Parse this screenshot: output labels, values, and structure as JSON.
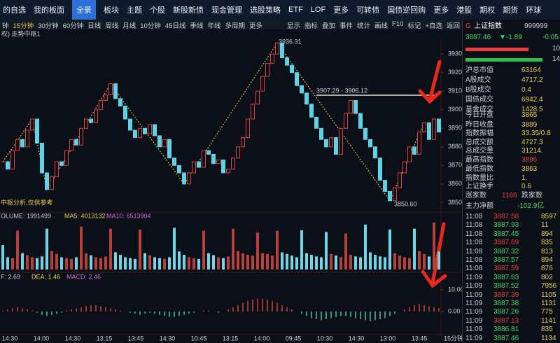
{
  "toolbar": [
    "的自选",
    "我的板面",
    "全景",
    "板块",
    "主题",
    "个股",
    "新股新债",
    "现金管理",
    "选股策略",
    "ETF",
    "LOF",
    "更多",
    "可转债",
    "国债逆回购",
    "更多",
    "港股",
    "期权",
    "期货",
    "环球"
  ],
  "periods": [
    "钟",
    "15分钟",
    "30分钟",
    "60分钟",
    "日线",
    "周线",
    "月线",
    "10分钟",
    "45日线",
    "季线",
    "年线",
    "多周期",
    "更多"
  ],
  "tools": [
    "显示",
    "指标",
    "叠加",
    "事件",
    "统计",
    "画线",
    "F10",
    "标记",
    "+自选",
    "返回"
  ],
  "indicator_title": "权) 走势中枢1",
  "price_chart": {
    "close": [
      3872,
      3868,
      3878,
      3884,
      3880,
      3889,
      3895,
      3882,
      3866,
      3857,
      3864,
      3872,
      3870,
      3878,
      3884,
      3881,
      3890,
      3895,
      3893,
      3900,
      3905,
      3908,
      3914,
      3906,
      3902,
      3895,
      3889,
      3885,
      3890,
      3887,
      3892,
      3886,
      3880,
      3884,
      3874,
      3870,
      3866,
      3860,
      3866,
      3872,
      3869,
      3878,
      3876,
      3871,
      3873,
      3866,
      3868,
      3874,
      3880,
      3885,
      3895,
      3903,
      3910,
      3918,
      3925,
      3930,
      3936,
      3928,
      3924,
      3920,
      3913,
      3909,
      3903,
      3896,
      3890,
      3884,
      3880,
      3885,
      3876,
      3890,
      3898,
      3905,
      3898,
      3890,
      3884,
      3880,
      3874,
      3862,
      3856,
      3851,
      3858,
      3866,
      3872,
      3880,
      3876,
      3888,
      3893,
      3884,
      3895,
      3888
    ],
    "ylim": [
      3846,
      3938
    ],
    "yticks": [
      3850,
      3860,
      3870,
      3880,
      3890,
      3900,
      3910,
      3920,
      3930
    ],
    "annotations": [
      "3936.31",
      "3907.29 - 3906.12",
      "3850.60"
    ],
    "note": "中枢分析,仅供参考"
  },
  "volume": {
    "labels": [
      "OLUME: 1991499",
      "MA5: 4013132",
      "MA10: 6513904"
    ],
    "ylim": [
      0,
      120
    ],
    "values": [
      60,
      30,
      28,
      95,
      40,
      35,
      30,
      28,
      32,
      100,
      45,
      38,
      30,
      28,
      26,
      30,
      105,
      40,
      35,
      30,
      28,
      32,
      100,
      42,
      36,
      30,
      28,
      26,
      98,
      40,
      35,
      30,
      28,
      26,
      30,
      102,
      44,
      36,
      30,
      28,
      26,
      95,
      40,
      35,
      30,
      28,
      32,
      100,
      45,
      40,
      36,
      34,
      90,
      40,
      38,
      34,
      95,
      42,
      38,
      34,
      30,
      96,
      40,
      36,
      32,
      30,
      92,
      38,
      34,
      30,
      88,
      36,
      32,
      30,
      110,
      42,
      36,
      32,
      30,
      98,
      40,
      34,
      30,
      28,
      100,
      45,
      38,
      32,
      115,
      44
    ]
  },
  "macd": {
    "labels": [
      "F: 2.69",
      "DEA: 1.46",
      "MACD: 2.46"
    ],
    "ylim": [
      -10.6,
      17.1
    ],
    "yticks": [
      {
        "value": 10,
        "label": "10.00"
      },
      {
        "value": 0,
        "label": "0.00"
      }
    ],
    "values": [
      0.5,
      1,
      1.5,
      2,
      1.5,
      1,
      0.5,
      -0.5,
      -1.5,
      -2,
      -1.5,
      -1,
      -0.5,
      0.5,
      1,
      1.5,
      2,
      2.5,
      3,
      3,
      2.5,
      2,
      1.5,
      1,
      0.5,
      0,
      -0.5,
      -1,
      -1.5,
      -1,
      -0.5,
      -1,
      -1.5,
      -2,
      -2.5,
      -2.5,
      -2,
      -1.5,
      -1,
      -0.5,
      0,
      0.5,
      0.5,
      0,
      -0.5,
      0,
      1,
      2,
      3,
      4,
      5,
      5.5,
      6,
      6,
      5.5,
      5,
      4,
      3,
      2,
      1,
      0,
      -1,
      -2,
      -3,
      -3.5,
      -4,
      -3.5,
      -3,
      -2.5,
      -2,
      -2,
      -2.5,
      -3,
      -3.5,
      -4,
      -4.5,
      -4,
      -3.5,
      -3,
      -2,
      -1,
      0,
      1,
      2,
      3,
      3.5,
      3,
      2.5,
      2,
      1.5
    ]
  },
  "time_axis": [
    "14:30",
    "14:00",
    "14:30",
    "13:15",
    "13:45",
    "14:30",
    "10:45",
    "13:15",
    "14:00",
    "09:45",
    "10:30",
    "14:30",
    "13:00",
    "13:45"
  ],
  "period_label": "15分钟",
  "quote": {
    "code_letter": "G",
    "name": "上证指数",
    "code": "999999",
    "price": "3887.46",
    "change": "▼-1.89",
    "pct": "-0.05",
    "bar_up": "107",
    "bar_down": "144",
    "stats": [
      [
        "沪总市值",
        "63164"
      ],
      [
        "A股成交",
        "4717.2"
      ],
      [
        "B股成交",
        "0.4"
      ],
      [
        "国债成交",
        "6942.4"
      ],
      [
        "基金成交",
        "1428.5"
      ],
      [
        "今日开盘",
        "3865"
      ],
      [
        "昨日收盘",
        "3889"
      ],
      [
        "指数振幅",
        "33.35/0.8"
      ],
      [
        "总成交额",
        "4727.3"
      ],
      [
        "总成交量",
        "31214."
      ],
      [
        "最高指数",
        "3896"
      ],
      [
        "最低指数",
        "3863"
      ],
      [
        "指数量比",
        "1."
      ],
      [
        "上证换手",
        "0.6"
      ]
    ],
    "breadth": [
      "涨家数",
      "1166",
      "跌家数"
    ],
    "flow": [
      "主力净额",
      "-102.9亿"
    ],
    "ticks": [
      [
        "11:08",
        "3887.58",
        "8597"
      ],
      [
        "11:08",
        "3887.93",
        "11"
      ],
      [
        "11:08",
        "3887.45",
        "894"
      ],
      [
        "11:08",
        "3887.69",
        "835"
      ],
      [
        "11:08",
        "3887.32",
        "813"
      ],
      [
        "11:08",
        "3887.57",
        "894"
      ],
      [
        "11:08",
        "3887.59",
        "876"
      ],
      [
        "11:09",
        "3887.63",
        "802"
      ],
      [
        "11:09",
        "3887.52",
        "7956"
      ],
      [
        "11:09",
        "3887.39",
        "1105"
      ],
      [
        "11:09",
        "3887.38",
        "1131"
      ],
      [
        "11:09",
        "3887.26",
        "775"
      ],
      [
        "11:09",
        "3887.13",
        "1141"
      ],
      [
        "11:09",
        "3886.81",
        "835"
      ],
      [
        "11:09",
        "3887.46",
        "1134"
      ]
    ]
  }
}
